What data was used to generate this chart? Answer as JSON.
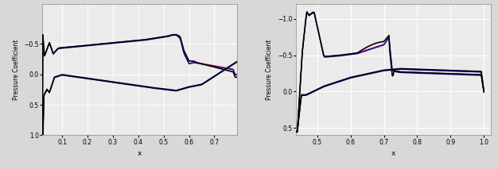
{
  "left": {
    "xlim": [
      0.022,
      0.79
    ],
    "ylim": [
      0.72,
      -1.15
    ],
    "xticks": [
      0.1,
      0.2,
      0.3,
      0.4,
      0.5,
      0.6,
      0.7
    ],
    "yticks": [
      -0.5,
      0.0,
      0.5,
      1.0
    ],
    "xlabel": "x",
    "ylabel": "Pressure Coefficient"
  },
  "right": {
    "xlim": [
      0.435,
      1.02
    ],
    "ylim": [
      0.6,
      -1.2
    ],
    "xticks": [
      0.5,
      0.6,
      0.7,
      0.8,
      0.9,
      1.0
    ],
    "yticks": [
      -1.0,
      -0.5,
      0.0,
      0.5
    ],
    "xlabel": "x",
    "ylabel": "Pressure Coefficient"
  },
  "colors": {
    "orig": "#000000",
    "1st_adapt": "#0000cc",
    "2nd_adapt": "#dd0000"
  },
  "line_width": 0.9,
  "background_color": "#ebebeb",
  "grid_color": "#ffffff",
  "fig_bg": "#d8d8d8",
  "figsize": [
    6.26,
    2.13
  ],
  "dpi": 100
}
